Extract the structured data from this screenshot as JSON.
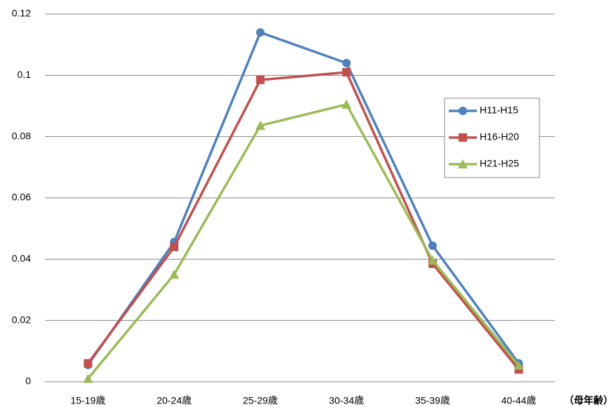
{
  "chart_data": {
    "type": "line",
    "categories": [
      "15-19歳",
      "20-24歳",
      "25-29歳",
      "30-34歳",
      "35-39歳",
      "40-44歳"
    ],
    "xlabel": "（母年齢）",
    "series": [
      {
        "name": "H11-H15",
        "color": "#4f81bd",
        "marker": "circle",
        "values": [
          0.0055,
          0.0456,
          0.114,
          0.104,
          0.0444,
          0.006
        ]
      },
      {
        "name": "H16-H20",
        "color": "#c0504d",
        "marker": "square",
        "values": [
          0.006,
          0.044,
          0.0985,
          0.101,
          0.0385,
          0.004
        ]
      },
      {
        "name": "H21-H25",
        "color": "#9bbb59",
        "marker": "triangle",
        "values": [
          0.001,
          0.035,
          0.0836,
          0.0905,
          0.0396,
          0.0053
        ]
      }
    ],
    "ylim": [
      0,
      0.12
    ],
    "yticks": [
      0,
      0.02,
      0.04,
      0.06,
      0.08,
      0.1,
      0.12
    ],
    "grid": true,
    "legend": "right"
  }
}
